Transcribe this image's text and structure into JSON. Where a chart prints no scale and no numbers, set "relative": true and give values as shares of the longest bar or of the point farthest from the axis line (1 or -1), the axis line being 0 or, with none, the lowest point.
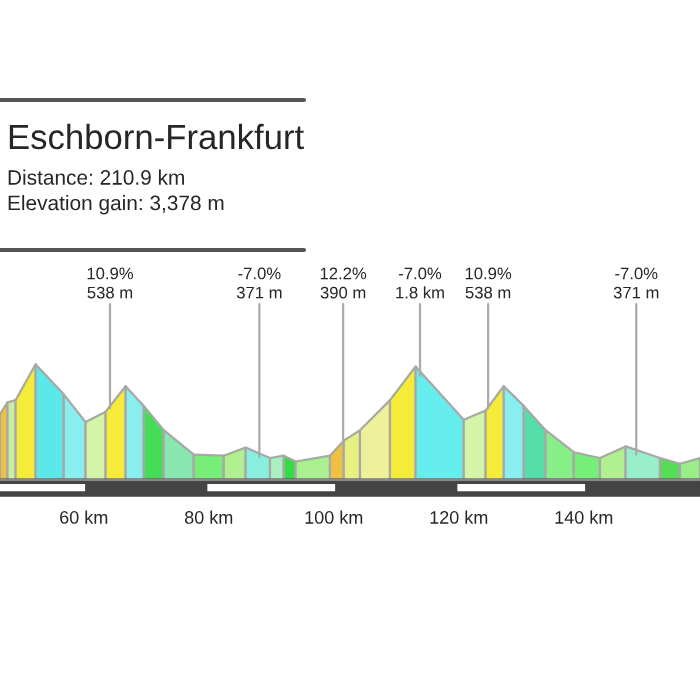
{
  "chart_data": {
    "type": "area",
    "title": "Eschborn-Frankfurt",
    "subtitle": "Distance: 210.9 km\nElevation gain: 3,378 m",
    "relative": true,
    "series": [
      {
        "color": "#f0c040",
        "x": [
          46.6,
          47.8
        ],
        "values": [
          0.57,
          0.67
        ]
      },
      {
        "color": "#c8f0a0",
        "x": [
          47.8,
          49.1
        ],
        "values": [
          0.67,
          0.69
        ]
      },
      {
        "color": "#f5ec3a",
        "x": [
          49.1,
          52.3
        ],
        "values": [
          0.69,
          1.0
        ]
      },
      {
        "color": "#5ce8e8",
        "x": [
          52.3,
          56.8
        ],
        "values": [
          1.0,
          0.74
        ]
      },
      {
        "color": "#88eeee",
        "x": [
          56.8,
          60.3
        ],
        "values": [
          0.74,
          0.5
        ]
      },
      {
        "color": "#d4f5a8",
        "x": [
          60.3,
          63.5
        ],
        "values": [
          0.5,
          0.59
        ]
      },
      {
        "color": "#f5ec3a",
        "x": [
          63.5,
          66.7
        ],
        "values": [
          0.59,
          0.81
        ]
      },
      {
        "color": "#88eeee",
        "x": [
          66.7,
          69.6
        ],
        "values": [
          0.81,
          0.64
        ]
      },
      {
        "color": "#44dd55",
        "x": [
          69.6,
          72.8
        ],
        "values": [
          0.64,
          0.43
        ]
      },
      {
        "color": "#88e8b0",
        "x": [
          72.8,
          77.6
        ],
        "values": [
          0.43,
          0.22
        ]
      },
      {
        "color": "#77ee77",
        "x": [
          77.6,
          82.4
        ],
        "values": [
          0.22,
          0.21
        ]
      },
      {
        "color": "#b0f090",
        "x": [
          82.4,
          85.9
        ],
        "values": [
          0.21,
          0.28
        ]
      },
      {
        "color": "#88eedd",
        "x": [
          85.9,
          89.8
        ],
        "values": [
          0.28,
          0.19
        ]
      },
      {
        "color": "#aaf0c0",
        "x": [
          89.8,
          92.0
        ],
        "values": [
          0.19,
          0.21
        ]
      },
      {
        "color": "#33dd44",
        "x": [
          92.0,
          93.9
        ],
        "values": [
          0.21,
          0.16
        ]
      },
      {
        "color": "#aaf090",
        "x": [
          93.9,
          99.4
        ],
        "values": [
          0.16,
          0.21
        ]
      },
      {
        "color": "#f0c040",
        "x": [
          99.4,
          101.6
        ],
        "values": [
          0.21,
          0.34
        ]
      },
      {
        "color": "#e8f080",
        "x": [
          101.6,
          104.2
        ],
        "values": [
          0.34,
          0.43
        ]
      },
      {
        "color": "#eef09a",
        "x": [
          104.2,
          109.0
        ],
        "values": [
          0.43,
          0.69
        ]
      },
      {
        "color": "#f5ec3a",
        "x": [
          109.0,
          113.1
        ],
        "values": [
          0.69,
          0.98
        ]
      },
      {
        "color": "#66eeee",
        "x": [
          113.1,
          120.8
        ],
        "values": [
          0.98,
          0.52
        ]
      },
      {
        "color": "#d4f5a8",
        "x": [
          120.8,
          124.3
        ],
        "values": [
          0.52,
          0.6
        ]
      },
      {
        "color": "#f5ec3a",
        "x": [
          124.3,
          127.2
        ],
        "values": [
          0.6,
          0.81
        ]
      },
      {
        "color": "#88eeee",
        "x": [
          127.2,
          130.4
        ],
        "values": [
          0.81,
          0.64
        ]
      },
      {
        "color": "#55ddaa",
        "x": [
          130.4,
          133.9
        ],
        "values": [
          0.64,
          0.43
        ]
      },
      {
        "color": "#88ee88",
        "x": [
          133.9,
          138.4
        ],
        "values": [
          0.43,
          0.24
        ]
      },
      {
        "color": "#77ee77",
        "x": [
          138.4,
          142.6
        ],
        "values": [
          0.24,
          0.19
        ]
      },
      {
        "color": "#b0f090",
        "x": [
          142.6,
          146.7
        ],
        "values": [
          0.19,
          0.29
        ]
      },
      {
        "color": "#99eecc",
        "x": [
          146.7,
          152.2
        ],
        "values": [
          0.29,
          0.19
        ]
      },
      {
        "color": "#55dd55",
        "x": [
          152.2,
          155.4
        ],
        "values": [
          0.19,
          0.14
        ]
      },
      {
        "color": "#99ee88",
        "x": [
          155.4,
          158.6
        ],
        "values": [
          0.14,
          0.19
        ]
      }
    ],
    "xlim": [
      46.6,
      158.6
    ],
    "xticks": [
      {
        "value": 60,
        "label": "60 km"
      },
      {
        "value": 80,
        "label": "80 km"
      },
      {
        "value": 100,
        "label": "100 km"
      },
      {
        "value": 120,
        "label": "120 km"
      },
      {
        "value": 140,
        "label": "140 km"
      }
    ],
    "annotations": [
      {
        "text": "10.9%\n538 m",
        "x": 64.2,
        "y": 0.62
      },
      {
        "text": "-7.0%\n371 m",
        "x": 88.1,
        "y": 0.2
      },
      {
        "text": "12.2%\n390 m",
        "x": 101.5,
        "y": 0.33
      },
      {
        "text": "-7.0%\n1.8 km",
        "x": 113.8,
        "y": 0.9
      },
      {
        "text": "10.9%\n538 m",
        "x": 124.7,
        "y": 0.62
      },
      {
        "text": "-7.0%\n371 m",
        "x": 148.4,
        "y": 0.22
      }
    ],
    "grid": false
  }
}
